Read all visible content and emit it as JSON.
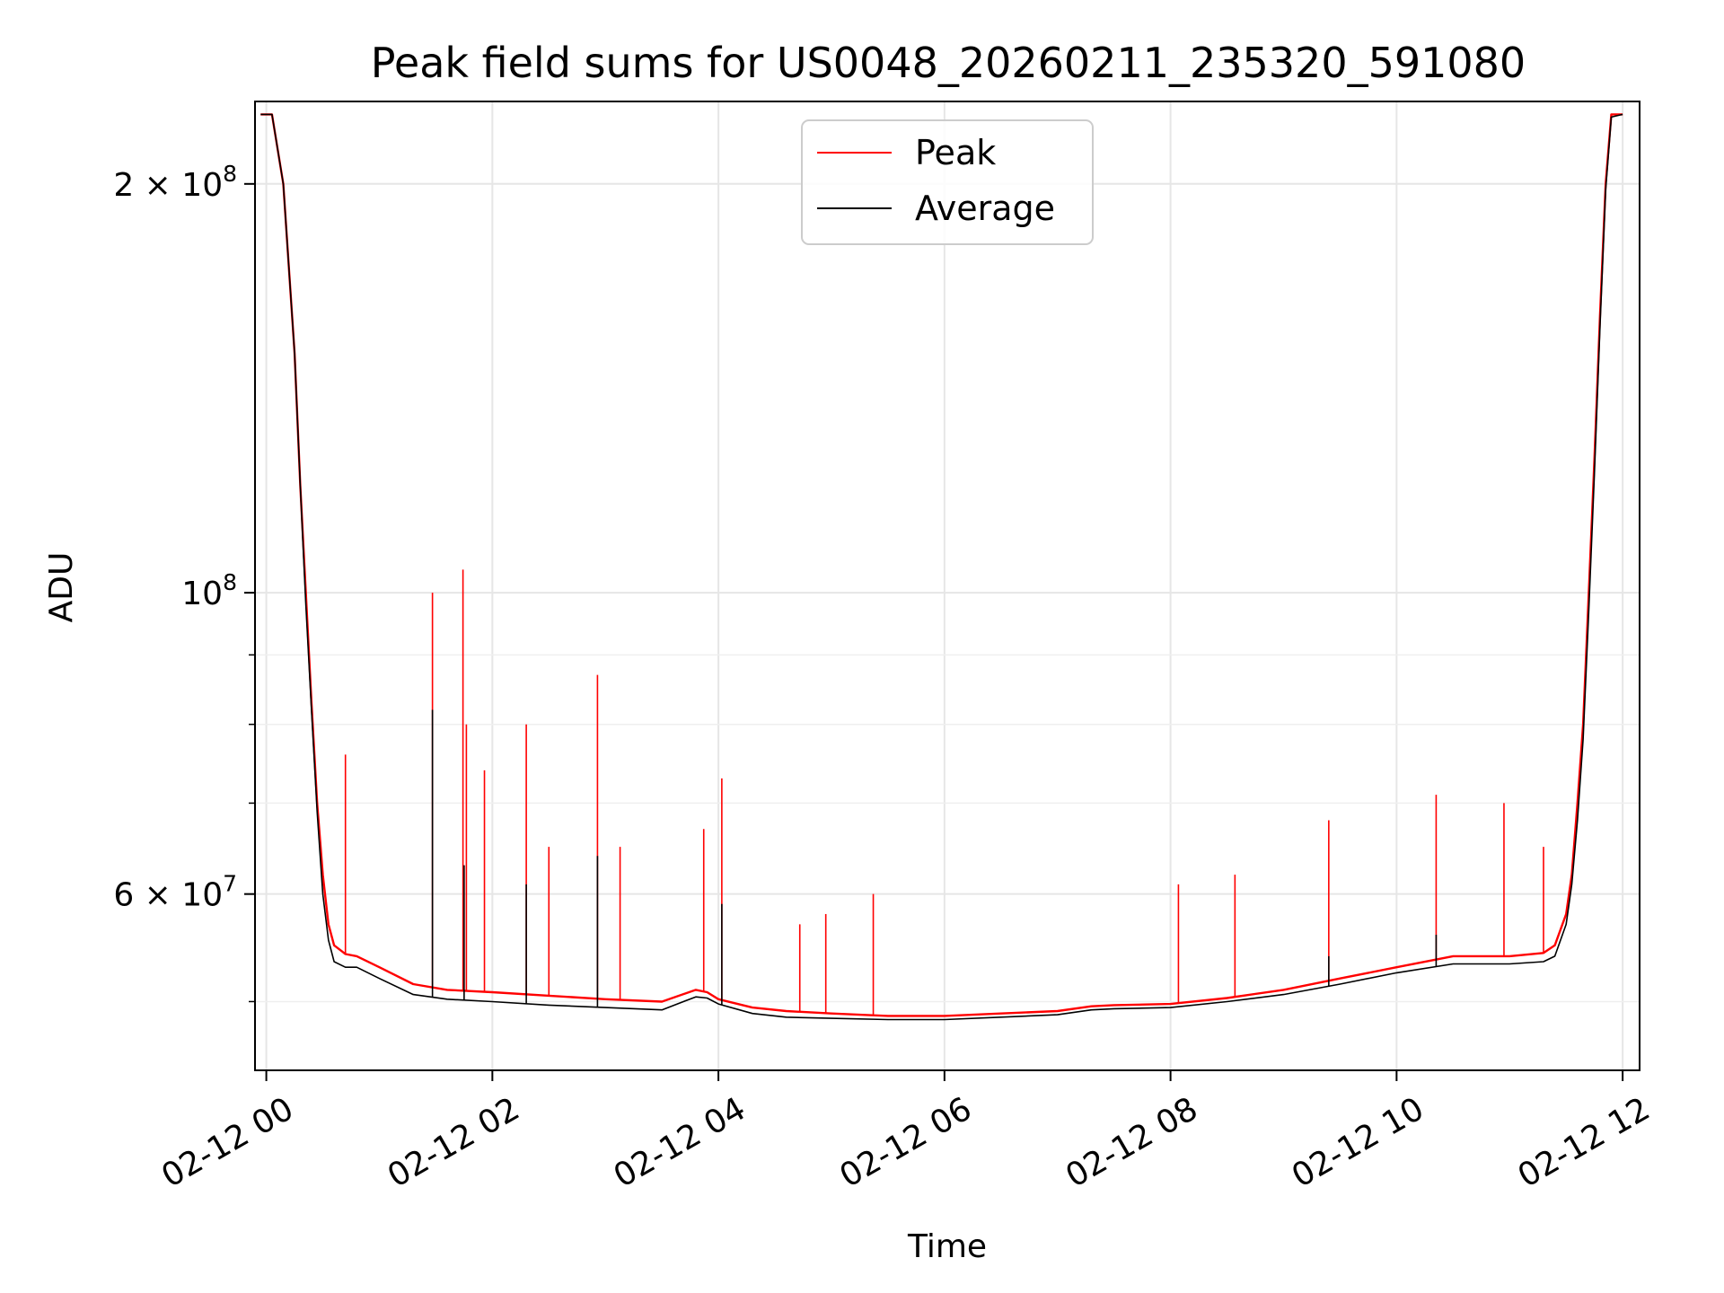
{
  "chart_data": {
    "type": "line",
    "title": "Peak field sums for US0048_20260211_235320_591080",
    "xlabel": "Time",
    "ylabel": "ADU",
    "x_axis": {
      "type": "time",
      "ticks": [
        "02-12 00",
        "02-12 02",
        "02-12 04",
        "02-12 06",
        "02-12 08",
        "02-12 10",
        "02-12 12"
      ],
      "tick_hours": [
        0,
        2,
        4,
        6,
        8,
        10,
        12
      ],
      "range_hours": [
        -0.1,
        12.15
      ]
    },
    "y_axis": {
      "scale": "log",
      "range": [
        44500000,
        230000000
      ],
      "major_ticks": [
        {
          "value": 200000000,
          "base": "2 × 10",
          "exp": "8"
        },
        {
          "value": 100000000,
          "base": "10",
          "exp": "8"
        },
        {
          "value": 60000000,
          "base": "6 × 10",
          "exp": "7"
        }
      ],
      "minor_ticks": [
        50000000,
        70000000,
        80000000,
        90000000
      ]
    },
    "grid": true,
    "legend_position": "upper center",
    "series": [
      {
        "name": "Peak",
        "color": "#ff0000",
        "x_hours": [
          -0.05,
          0.05,
          0.15,
          0.25,
          0.3,
          0.35,
          0.4,
          0.45,
          0.5,
          0.55,
          0.6,
          0.7,
          0.8,
          1.0,
          1.3,
          1.6,
          2.0,
          2.5,
          3.0,
          3.5,
          3.8,
          3.9,
          4.0,
          4.3,
          4.6,
          5.0,
          5.5,
          6.0,
          6.5,
          7.0,
          7.3,
          7.5,
          8.0,
          8.5,
          9.0,
          9.5,
          10.0,
          10.5,
          11.0,
          11.3,
          11.4,
          11.5,
          11.55,
          11.6,
          11.65,
          11.7,
          11.75,
          11.8,
          11.85,
          11.9,
          12.0
        ],
        "y_values": [
          225000000,
          225000000,
          200000000,
          150000000,
          120000000,
          100000000,
          83000000,
          70000000,
          62000000,
          57000000,
          55000000,
          54200000,
          54000000,
          53000000,
          51500000,
          51000000,
          50800000,
          50500000,
          50200000,
          50000000,
          51000000,
          50800000,
          50200000,
          49500000,
          49200000,
          49000000,
          48800000,
          48800000,
          49000000,
          49200000,
          49600000,
          49700000,
          49800000,
          50300000,
          51000000,
          52000000,
          53000000,
          54000000,
          54000000,
          54300000,
          55000000,
          58000000,
          62000000,
          70000000,
          80000000,
          100000000,
          125000000,
          160000000,
          200000000,
          225000000,
          225000000
        ],
        "spikes": [
          {
            "x_hours": 0.35,
            "y": 101000000
          },
          {
            "x_hours": 0.7,
            "y": 76000000
          },
          {
            "x_hours": 1.47,
            "y": 100000000
          },
          {
            "x_hours": 1.74,
            "y": 104000000
          },
          {
            "x_hours": 1.77,
            "y": 80000000
          },
          {
            "x_hours": 1.93,
            "y": 74000000
          },
          {
            "x_hours": 2.3,
            "y": 80000000
          },
          {
            "x_hours": 2.5,
            "y": 65000000
          },
          {
            "x_hours": 2.93,
            "y": 87000000
          },
          {
            "x_hours": 3.13,
            "y": 65000000
          },
          {
            "x_hours": 3.87,
            "y": 67000000
          },
          {
            "x_hours": 4.03,
            "y": 73000000
          },
          {
            "x_hours": 4.72,
            "y": 57000000
          },
          {
            "x_hours": 4.95,
            "y": 58000000
          },
          {
            "x_hours": 5.37,
            "y": 60000000
          },
          {
            "x_hours": 8.07,
            "y": 61000000
          },
          {
            "x_hours": 8.57,
            "y": 62000000
          },
          {
            "x_hours": 9.4,
            "y": 68000000
          },
          {
            "x_hours": 10.35,
            "y": 71000000
          },
          {
            "x_hours": 10.95,
            "y": 70000000
          },
          {
            "x_hours": 11.3,
            "y": 65000000
          }
        ]
      },
      {
        "name": "Average",
        "color": "#000000",
        "x_hours": [
          -0.05,
          0.05,
          0.15,
          0.25,
          0.3,
          0.35,
          0.4,
          0.45,
          0.5,
          0.55,
          0.6,
          0.7,
          0.8,
          1.0,
          1.3,
          1.6,
          2.0,
          2.5,
          3.0,
          3.5,
          3.8,
          3.9,
          4.0,
          4.3,
          4.6,
          5.0,
          5.5,
          6.0,
          6.5,
          7.0,
          7.3,
          7.5,
          8.0,
          8.5,
          9.0,
          9.5,
          10.0,
          10.5,
          11.0,
          11.3,
          11.4,
          11.5,
          11.55,
          11.6,
          11.65,
          11.7,
          11.75,
          11.8,
          11.85,
          11.9,
          12.0
        ],
        "y_values": [
          225000000,
          225000000,
          200000000,
          150000000,
          120000000,
          98000000,
          82000000,
          69000000,
          60000000,
          55500000,
          53500000,
          53000000,
          53000000,
          52000000,
          50600000,
          50200000,
          50000000,
          49700000,
          49500000,
          49300000,
          50400000,
          50300000,
          49800000,
          49000000,
          48700000,
          48600000,
          48500000,
          48500000,
          48700000,
          48900000,
          49300000,
          49400000,
          49500000,
          50000000,
          50600000,
          51500000,
          52500000,
          53300000,
          53300000,
          53500000,
          54000000,
          57000000,
          61000000,
          68000000,
          78000000,
          97000000,
          122000000,
          157000000,
          198000000,
          224000000,
          225000000
        ],
        "spikes": [
          {
            "x_hours": 1.47,
            "y": 82000000
          },
          {
            "x_hours": 1.75,
            "y": 63000000
          },
          {
            "x_hours": 2.3,
            "y": 61000000
          },
          {
            "x_hours": 2.93,
            "y": 64000000
          },
          {
            "x_hours": 4.03,
            "y": 59000000
          },
          {
            "x_hours": 9.4,
            "y": 54000000
          },
          {
            "x_hours": 10.35,
            "y": 56000000
          }
        ]
      }
    ]
  }
}
